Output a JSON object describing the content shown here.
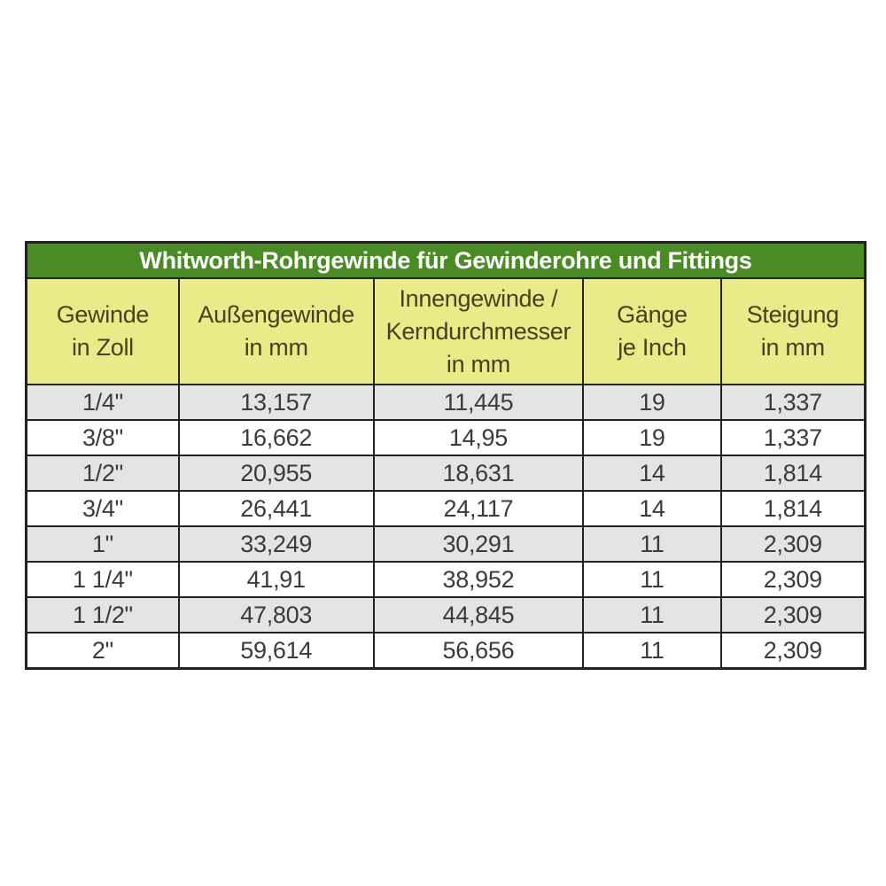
{
  "colors": {
    "title_bg": "#4a8b26",
    "title_text": "#ffffff",
    "header_bg": "#eaea88",
    "header_text": "#45411f",
    "row_alt_bg": "#e4e4e4",
    "row_bg": "#ffffff",
    "border": "#222222",
    "cell_text": "#3b3b3b"
  },
  "chart_data": {
    "type": "table",
    "title": "Whitworth-Rohrgewinde für Gewinderohre und Fittings",
    "columns": [
      [
        "Gewinde",
        "in Zoll"
      ],
      [
        "Außengewinde",
        "in mm"
      ],
      [
        "Innengewinde /",
        "Kerndurchmesser",
        "in mm"
      ],
      [
        "Gänge",
        "je Inch"
      ],
      [
        "Steigung",
        "in mm"
      ]
    ],
    "rows": [
      [
        "1/4\"",
        "13,157",
        "11,445",
        "19",
        "1,337"
      ],
      [
        "3/8\"",
        "16,662",
        "14,95",
        "19",
        "1,337"
      ],
      [
        "1/2\"",
        "20,955",
        "18,631",
        "14",
        "1,814"
      ],
      [
        "3/4\"",
        "26,441",
        "24,117",
        "14",
        "1,814"
      ],
      [
        "1\"",
        "33,249",
        "30,291",
        "11",
        "2,309"
      ],
      [
        "1 1/4\"",
        "41,91",
        "38,952",
        "11",
        "2,309"
      ],
      [
        "1 1/2\"",
        "47,803",
        "44,845",
        "11",
        "2,309"
      ],
      [
        "2\"",
        "59,614",
        "56,656",
        "11",
        "2,309"
      ]
    ]
  }
}
